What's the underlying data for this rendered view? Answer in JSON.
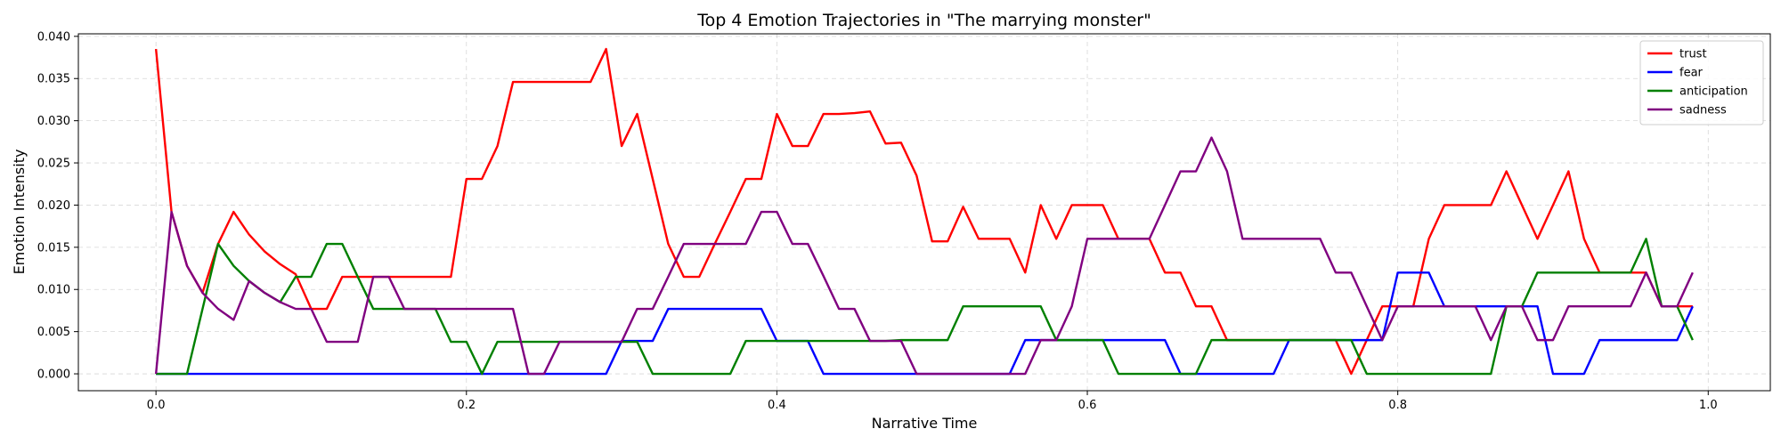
{
  "chart_data": {
    "type": "line",
    "title": "Top 4 Emotion Trajectories in \"The marrying monster\"",
    "xlabel": "Narrative Time",
    "ylabel": "Emotion Intensity",
    "xlim": [
      -0.05,
      1.04
    ],
    "ylim": [
      -0.002,
      0.0403
    ],
    "xticks": [
      0.0,
      0.2,
      0.4,
      0.6,
      0.8,
      1.0
    ],
    "xtick_labels": [
      "0.0",
      "0.2",
      "0.4",
      "0.6",
      "0.8",
      "1.0"
    ],
    "yticks": [
      0.0,
      0.005,
      0.01,
      0.015,
      0.02,
      0.025,
      0.03,
      0.035,
      0.04
    ],
    "ytick_labels": [
      "0.000",
      "0.005",
      "0.010",
      "0.015",
      "0.020",
      "0.025",
      "0.030",
      "0.035",
      "0.040"
    ],
    "grid": true,
    "legend_position": "top-right",
    "series": [
      {
        "name": "trust",
        "color": "#ff0000",
        "x": [
          0.0,
          0.01,
          0.02,
          0.03,
          0.04,
          0.05,
          0.06,
          0.07,
          0.08,
          0.09,
          0.1,
          0.11,
          0.12,
          0.13,
          0.14,
          0.15,
          0.16,
          0.17,
          0.18,
          0.19,
          0.2,
          0.21,
          0.22,
          0.23,
          0.24,
          0.25,
          0.26,
          0.27,
          0.28,
          0.29,
          0.3,
          0.31,
          0.32,
          0.33,
          0.34,
          0.35,
          0.36,
          0.37,
          0.38,
          0.39,
          0.4,
          0.41,
          0.42,
          0.43,
          0.44,
          0.45,
          0.46,
          0.47,
          0.48,
          0.49,
          0.5,
          0.51,
          0.52,
          0.53,
          0.54,
          0.55,
          0.56,
          0.57,
          0.58,
          0.59,
          0.6,
          0.61,
          0.62,
          0.63,
          0.64,
          0.65,
          0.66,
          0.67,
          0.68,
          0.69,
          0.7,
          0.71,
          0.72,
          0.73,
          0.74,
          0.75,
          0.76,
          0.77,
          0.78,
          0.79,
          0.8,
          0.81,
          0.82,
          0.83,
          0.84,
          0.85,
          0.86,
          0.87,
          0.88,
          0.89,
          0.9,
          0.91,
          0.92,
          0.93,
          0.94,
          0.95,
          0.96,
          0.97,
          0.98,
          0.99
        ],
        "y": [
          0.0385,
          0.0192,
          0.0128,
          0.0096,
          0.0154,
          0.0192,
          0.0165,
          0.0145,
          0.013,
          0.0118,
          0.0077,
          0.0077,
          0.0115,
          0.0115,
          0.0115,
          0.0115,
          0.0115,
          0.0115,
          0.0115,
          0.0115,
          0.0231,
          0.0231,
          0.027,
          0.0346,
          0.0346,
          0.0346,
          0.0346,
          0.0346,
          0.0346,
          0.0385,
          0.027,
          0.0308,
          0.0231,
          0.0154,
          0.0115,
          0.0115,
          0.0154,
          0.0192,
          0.0231,
          0.0231,
          0.0308,
          0.027,
          0.027,
          0.0308,
          0.0308,
          0.0309,
          0.0311,
          0.0273,
          0.0274,
          0.0235,
          0.0157,
          0.0157,
          0.0198,
          0.016,
          0.016,
          0.016,
          0.012,
          0.02,
          0.016,
          0.02,
          0.02,
          0.02,
          0.016,
          0.016,
          0.016,
          0.012,
          0.012,
          0.008,
          0.008,
          0.004,
          0.004,
          0.004,
          0.004,
          0.004,
          0.004,
          0.004,
          0.004,
          0.0,
          0.004,
          0.008,
          0.008,
          0.008,
          0.016,
          0.02,
          0.02,
          0.02,
          0.02,
          0.024,
          0.02,
          0.016,
          0.02,
          0.024,
          0.016,
          0.012,
          0.012,
          0.012,
          0.012,
          0.008,
          0.008,
          0.008
        ]
      },
      {
        "name": "fear",
        "color": "#0000ff",
        "x": [
          0.0,
          0.01,
          0.02,
          0.03,
          0.04,
          0.05,
          0.06,
          0.07,
          0.08,
          0.09,
          0.1,
          0.11,
          0.12,
          0.13,
          0.14,
          0.15,
          0.16,
          0.17,
          0.18,
          0.19,
          0.2,
          0.21,
          0.22,
          0.23,
          0.24,
          0.25,
          0.26,
          0.27,
          0.28,
          0.29,
          0.3,
          0.31,
          0.32,
          0.33,
          0.34,
          0.35,
          0.36,
          0.37,
          0.38,
          0.39,
          0.4,
          0.41,
          0.42,
          0.43,
          0.44,
          0.45,
          0.46,
          0.47,
          0.48,
          0.49,
          0.5,
          0.51,
          0.52,
          0.53,
          0.54,
          0.55,
          0.56,
          0.57,
          0.58,
          0.59,
          0.6,
          0.61,
          0.62,
          0.63,
          0.64,
          0.65,
          0.66,
          0.67,
          0.68,
          0.69,
          0.7,
          0.71,
          0.72,
          0.73,
          0.74,
          0.75,
          0.76,
          0.77,
          0.78,
          0.79,
          0.8,
          0.81,
          0.82,
          0.83,
          0.84,
          0.85,
          0.86,
          0.87,
          0.88,
          0.89,
          0.9,
          0.91,
          0.92,
          0.93,
          0.94,
          0.95,
          0.96,
          0.97,
          0.98,
          0.99
        ],
        "y": [
          0.0,
          0.0,
          0.0,
          0.0,
          0.0,
          0.0,
          0.0,
          0.0,
          0.0,
          0.0,
          0.0,
          0.0,
          0.0,
          0.0,
          0.0,
          0.0,
          0.0,
          0.0,
          0.0,
          0.0,
          0.0,
          0.0,
          0.0,
          0.0,
          0.0,
          0.0,
          0.0,
          0.0,
          0.0,
          0.0,
          0.0039,
          0.0039,
          0.0039,
          0.0077,
          0.0077,
          0.0077,
          0.0077,
          0.0077,
          0.0077,
          0.0077,
          0.0039,
          0.0039,
          0.0039,
          0.0,
          0.0,
          0.0,
          0.0,
          0.0,
          0.0,
          0.0,
          0.0,
          0.0,
          0.0,
          0.0,
          0.0,
          0.0,
          0.004,
          0.004,
          0.004,
          0.004,
          0.004,
          0.004,
          0.004,
          0.004,
          0.004,
          0.004,
          0.0,
          0.0,
          0.0,
          0.0,
          0.0,
          0.0,
          0.0,
          0.004,
          0.004,
          0.004,
          0.004,
          0.004,
          0.004,
          0.004,
          0.012,
          0.012,
          0.012,
          0.008,
          0.008,
          0.008,
          0.008,
          0.008,
          0.008,
          0.008,
          0.0,
          0.0,
          0.0,
          0.004,
          0.004,
          0.004,
          0.004,
          0.004,
          0.004,
          0.008
        ]
      },
      {
        "name": "anticipation",
        "color": "#008000",
        "x": [
          0.0,
          0.01,
          0.02,
          0.03,
          0.04,
          0.05,
          0.06,
          0.07,
          0.08,
          0.09,
          0.1,
          0.11,
          0.12,
          0.13,
          0.14,
          0.15,
          0.16,
          0.17,
          0.18,
          0.19,
          0.2,
          0.21,
          0.22,
          0.23,
          0.24,
          0.25,
          0.26,
          0.27,
          0.28,
          0.29,
          0.3,
          0.31,
          0.32,
          0.33,
          0.34,
          0.35,
          0.36,
          0.37,
          0.38,
          0.39,
          0.4,
          0.41,
          0.42,
          0.43,
          0.44,
          0.45,
          0.46,
          0.47,
          0.48,
          0.49,
          0.5,
          0.51,
          0.52,
          0.53,
          0.54,
          0.55,
          0.56,
          0.57,
          0.58,
          0.59,
          0.6,
          0.61,
          0.62,
          0.63,
          0.64,
          0.65,
          0.66,
          0.67,
          0.68,
          0.69,
          0.7,
          0.71,
          0.72,
          0.73,
          0.74,
          0.75,
          0.76,
          0.77,
          0.78,
          0.79,
          0.8,
          0.81,
          0.82,
          0.83,
          0.84,
          0.85,
          0.86,
          0.87,
          0.88,
          0.89,
          0.9,
          0.91,
          0.92,
          0.93,
          0.94,
          0.95,
          0.96,
          0.97,
          0.98,
          0.99
        ],
        "y": [
          0.0,
          0.0,
          0.0,
          0.0077,
          0.0154,
          0.0128,
          0.011,
          0.0096,
          0.0085,
          0.0115,
          0.0115,
          0.0154,
          0.0154,
          0.0115,
          0.0077,
          0.0077,
          0.0077,
          0.0077,
          0.0077,
          0.0038,
          0.0038,
          0.0,
          0.0038,
          0.0038,
          0.0038,
          0.0038,
          0.0038,
          0.0038,
          0.0038,
          0.0038,
          0.0038,
          0.0038,
          0.0,
          0.0,
          0.0,
          0.0,
          0.0,
          0.0,
          0.0039,
          0.0039,
          0.0039,
          0.0039,
          0.0039,
          0.0039,
          0.0039,
          0.0039,
          0.0039,
          0.0039,
          0.004,
          0.004,
          0.004,
          0.004,
          0.008,
          0.008,
          0.008,
          0.008,
          0.008,
          0.008,
          0.004,
          0.004,
          0.004,
          0.004,
          0.0,
          0.0,
          0.0,
          0.0,
          0.0,
          0.0,
          0.004,
          0.004,
          0.004,
          0.004,
          0.004,
          0.004,
          0.004,
          0.004,
          0.004,
          0.004,
          0.0,
          0.0,
          0.0,
          0.0,
          0.0,
          0.0,
          0.0,
          0.0,
          0.0,
          0.008,
          0.008,
          0.012,
          0.012,
          0.012,
          0.012,
          0.012,
          0.012,
          0.012,
          0.016,
          0.008,
          0.008,
          0.004
        ]
      },
      {
        "name": "sadness",
        "color": "#800080",
        "x": [
          0.0,
          0.01,
          0.02,
          0.03,
          0.04,
          0.05,
          0.06,
          0.07,
          0.08,
          0.09,
          0.1,
          0.11,
          0.12,
          0.13,
          0.14,
          0.15,
          0.16,
          0.17,
          0.18,
          0.19,
          0.2,
          0.21,
          0.22,
          0.23,
          0.24,
          0.25,
          0.26,
          0.27,
          0.28,
          0.29,
          0.3,
          0.31,
          0.32,
          0.33,
          0.34,
          0.35,
          0.36,
          0.37,
          0.38,
          0.39,
          0.4,
          0.41,
          0.42,
          0.43,
          0.44,
          0.45,
          0.46,
          0.47,
          0.48,
          0.49,
          0.5,
          0.51,
          0.52,
          0.53,
          0.54,
          0.55,
          0.56,
          0.57,
          0.58,
          0.59,
          0.6,
          0.61,
          0.62,
          0.63,
          0.64,
          0.65,
          0.66,
          0.67,
          0.68,
          0.69,
          0.7,
          0.71,
          0.72,
          0.73,
          0.74,
          0.75,
          0.76,
          0.77,
          0.78,
          0.79,
          0.8,
          0.81,
          0.82,
          0.83,
          0.84,
          0.85,
          0.86,
          0.87,
          0.88,
          0.89,
          0.9,
          0.91,
          0.92,
          0.93,
          0.94,
          0.95,
          0.96,
          0.97,
          0.98,
          0.99
        ],
        "y": [
          0.0,
          0.0192,
          0.0128,
          0.0096,
          0.0077,
          0.0064,
          0.011,
          0.0096,
          0.0085,
          0.0077,
          0.0077,
          0.0038,
          0.0038,
          0.0038,
          0.0115,
          0.0115,
          0.0077,
          0.0077,
          0.0077,
          0.0077,
          0.0077,
          0.0077,
          0.0077,
          0.0077,
          0.0,
          0.0,
          0.0038,
          0.0038,
          0.0038,
          0.0038,
          0.0038,
          0.0077,
          0.0077,
          0.0115,
          0.0154,
          0.0154,
          0.0154,
          0.0154,
          0.0154,
          0.0192,
          0.0192,
          0.0154,
          0.0154,
          0.0116,
          0.0077,
          0.0077,
          0.0039,
          0.0039,
          0.0039,
          0.0,
          0.0,
          0.0,
          0.0,
          0.0,
          0.0,
          0.0,
          0.0,
          0.004,
          0.004,
          0.008,
          0.016,
          0.016,
          0.016,
          0.016,
          0.016,
          0.02,
          0.024,
          0.024,
          0.028,
          0.024,
          0.016,
          0.016,
          0.016,
          0.016,
          0.016,
          0.016,
          0.012,
          0.012,
          0.008,
          0.004,
          0.008,
          0.008,
          0.008,
          0.008,
          0.008,
          0.008,
          0.004,
          0.008,
          0.008,
          0.004,
          0.004,
          0.008,
          0.008,
          0.008,
          0.008,
          0.008,
          0.012,
          0.008,
          0.008,
          0.012
        ]
      }
    ]
  }
}
